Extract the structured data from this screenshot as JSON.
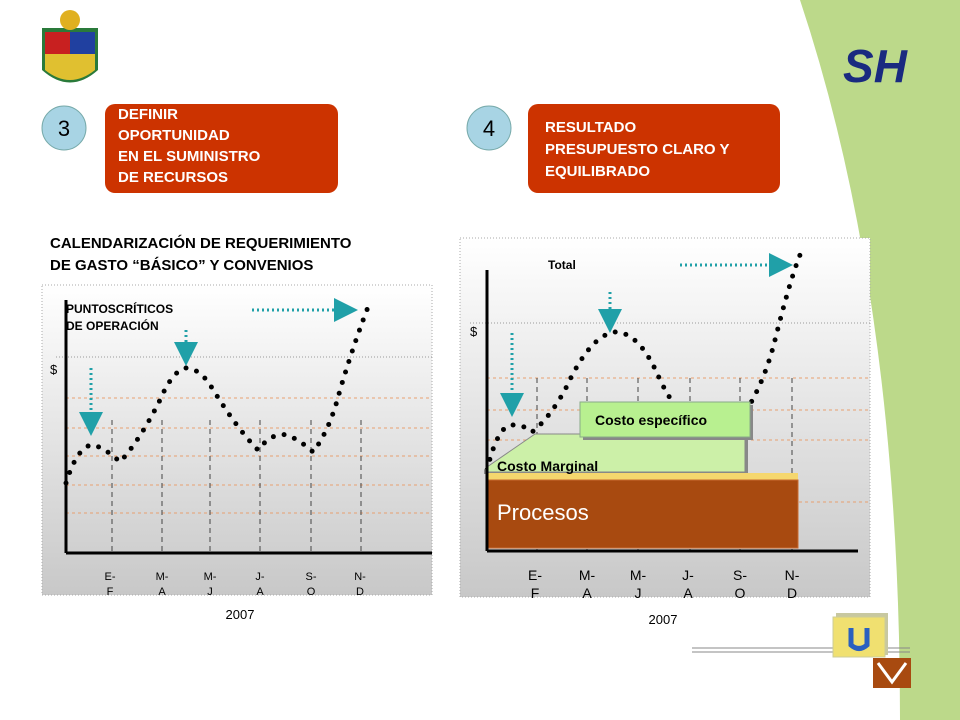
{
  "logo": "SH",
  "steps": [
    {
      "number": "3",
      "lines": [
        "DEFINIR",
        "OPORTUNIDAD",
        "EN EL SUMINISTRO",
        "DE RECURSOS"
      ]
    },
    {
      "number": "4",
      "lines": [
        "RESULTADO",
        "PRESUPUESTO CLARO Y",
        "EQUILIBRADO"
      ]
    }
  ],
  "left_chart": {
    "title_lines": [
      "CALENDARIZACIÓN DE REQUERIMIENTO",
      "DE GASTO “BÁSICO” Y CONVENIOS"
    ],
    "annotation_lines": [
      "PUNTOSCRÍTICOS",
      "DE OPERACIÓN"
    ],
    "y_label": "$",
    "x_labels": [
      [
        "E-",
        "F"
      ],
      [
        "M-",
        "A"
      ],
      [
        "M-",
        "J"
      ],
      [
        "J-",
        "A"
      ],
      [
        "S-",
        "O"
      ],
      [
        "N-",
        "D"
      ]
    ],
    "year": "2007"
  },
  "right_chart": {
    "total_label": "Total",
    "y_label": "$",
    "layers": [
      "Costo específico",
      "Costo Marginal",
      "Procesos"
    ],
    "x_labels": [
      [
        "E-",
        "F"
      ],
      [
        "M-",
        "A"
      ],
      [
        "M-",
        "J"
      ],
      [
        "J-",
        "A"
      ],
      [
        "S-",
        "O"
      ],
      [
        "N-",
        "D"
      ]
    ],
    "year": "2007"
  }
}
